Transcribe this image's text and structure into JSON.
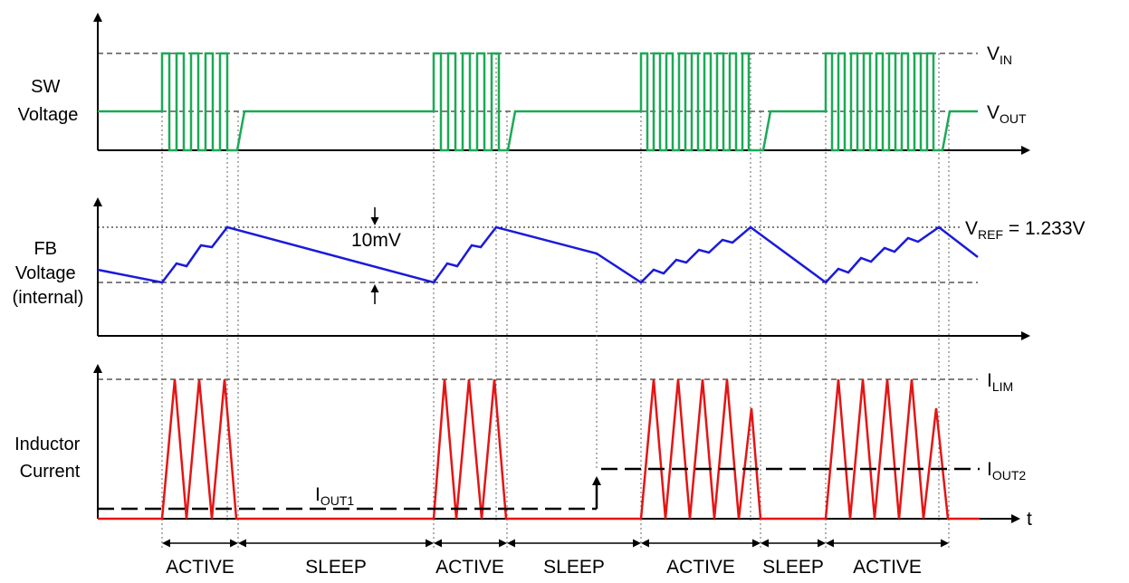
{
  "panels": {
    "sw": {
      "label_lines": [
        "SW",
        "Voltage"
      ]
    },
    "fb": {
      "label_lines": [
        "FB",
        "Voltage",
        "(internal)"
      ]
    },
    "ind": {
      "label_lines": [
        "Inductor",
        "Current"
      ]
    }
  },
  "annotations": {
    "vin": {
      "main": "V",
      "sub": "IN"
    },
    "vout": {
      "main": "V",
      "sub": "OUT"
    },
    "vref": {
      "main": "V",
      "sub": "REF",
      "suffix": " = 1.233V"
    },
    "ripple": "10mV",
    "ilim": {
      "main": "I",
      "sub": "LIM"
    },
    "iout1": {
      "main": "I",
      "sub": "OUT1"
    },
    "iout2": {
      "main": "I",
      "sub": "OUT2"
    },
    "t_axis": "t"
  },
  "phases": [
    "ACTIVE",
    "SLEEP",
    "ACTIVE",
    "SLEEP",
    "ACTIVE",
    "SLEEP",
    "ACTIVE"
  ],
  "colors": {
    "sw_trace": "#1aaa55",
    "fb_trace": "#1a1adb",
    "current_trace": "#e51414",
    "axes": "#000000",
    "guides": "#555555"
  }
}
